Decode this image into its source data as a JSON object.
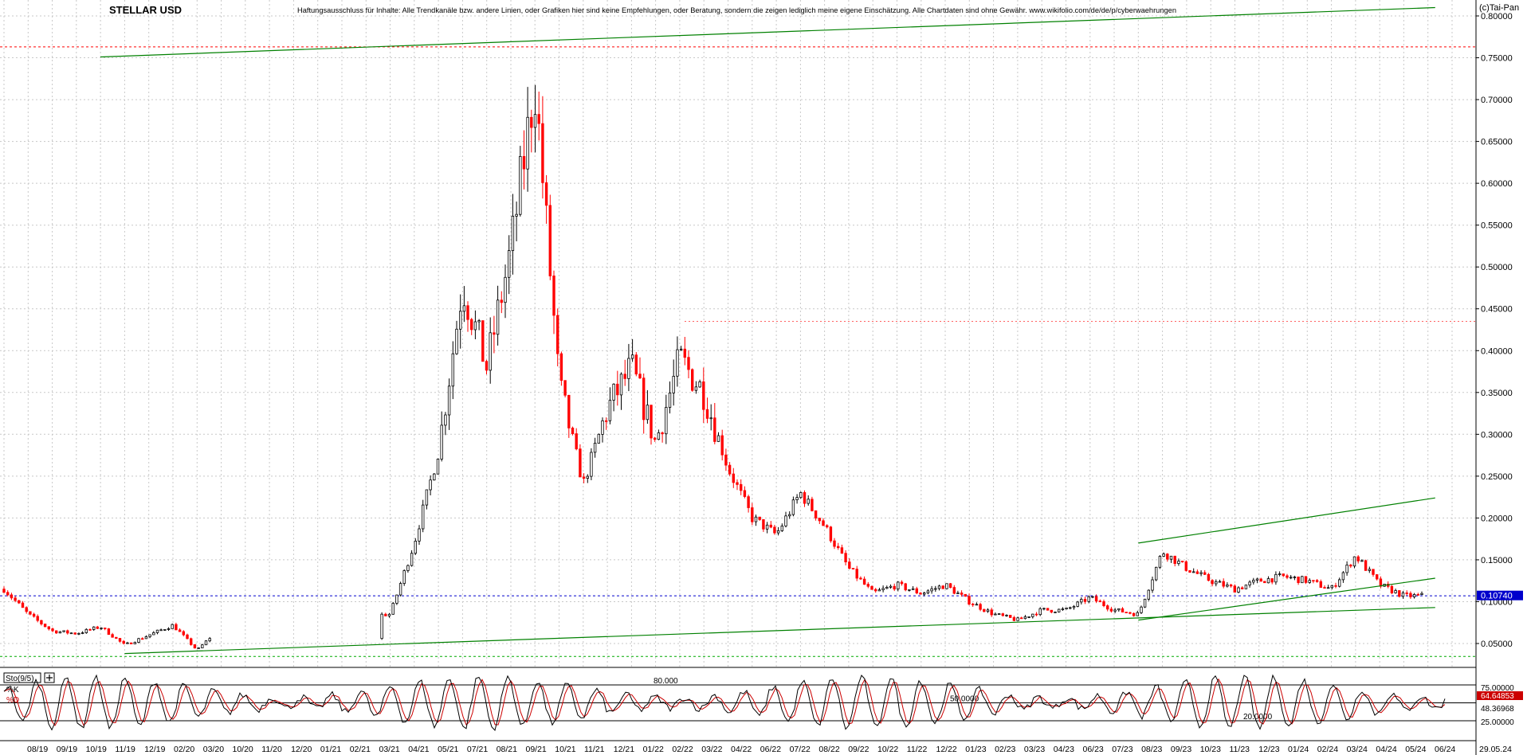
{
  "header": {
    "symbol": "STELLAR USD",
    "disclaimer": "Haftungsausschluss für Inhalte: Alle Trendkanäle bzw. andere Linien, oder Grafiken hier sind keine Empfehlungen, oder Beratung, sondern die zeigen lediglich meine eigene Einschätzung. Alle Chartdaten sind ohne Gewähr.  www.wikifolio.com/de/de/p/cyberwaehrungen",
    "copyright": "(c)Tai-Pan"
  },
  "colors": {
    "up_candle": "#000000",
    "down_candle": "#ff0000",
    "trendline": "#008000",
    "grid": "#c8c8c8",
    "last_price_bg": "#0000cc",
    "k_label_bg": "#cc0000",
    "d_label_bg": "#cc0000"
  },
  "chart_data": [
    {
      "type": "candlestick",
      "title": "STELLAR USD",
      "y_axis_side": "right",
      "ylim": [
        0.03,
        0.81
      ],
      "y_ticks": [
        0.05,
        0.1,
        0.15,
        0.2,
        0.25,
        0.3,
        0.35,
        0.4,
        0.45,
        0.5,
        0.55,
        0.6,
        0.65,
        0.7,
        0.75,
        0.8
      ],
      "y_tick_labels": [
        "0.05000",
        "0.10000",
        "0.15000",
        "0.20000",
        "0.25000",
        "0.30000",
        "0.35000",
        "0.40000",
        "0.45000",
        "0.50000",
        "0.55000",
        "0.60000",
        "0.65000",
        "0.70000",
        "0.75000",
        "0.80000"
      ],
      "x_labels": [
        "08/19",
        "09/19",
        "10/19",
        "11/19",
        "12/19",
        "02/20",
        "03/20",
        "10/20",
        "11/20",
        "12/20",
        "01/21",
        "02/21",
        "03/21",
        "04/21",
        "05/21",
        "07/21",
        "08/21",
        "09/21",
        "10/21",
        "11/21",
        "12/21",
        "01/22",
        "02/22",
        "03/22",
        "04/22",
        "06/22",
        "07/22",
        "08/22",
        "09/22",
        "10/22",
        "11/22",
        "12/22",
        "01/23",
        "02/23",
        "03/23",
        "04/23",
        "06/23",
        "07/23",
        "08/23",
        "09/23",
        "10/23",
        "11/23",
        "12/23",
        "01/24",
        "02/24",
        "03/24",
        "04/24",
        "05/24",
        "06/24",
        "29.05.24"
      ],
      "last_price": "0.10740",
      "close_anchors": [
        {
          "date": "2019-07",
          "close": 0.115
        },
        {
          "date": "2019-08",
          "close": 0.085
        },
        {
          "date": "2019-09",
          "close": 0.065
        },
        {
          "date": "2019-10",
          "close": 0.062
        },
        {
          "date": "2019-11",
          "close": 0.07
        },
        {
          "date": "2019-12",
          "close": 0.048
        },
        {
          "date": "2020-02",
          "close": 0.072
        },
        {
          "date": "2020-03",
          "close": 0.042
        },
        {
          "date": "2020-04",
          "close": 0.07
        },
        {
          "date": "2020-11",
          "close": 0.085
        },
        {
          "date": "2020-12",
          "close": 0.17
        },
        {
          "date": "2021-01",
          "close": 0.28
        },
        {
          "date": "2021-02",
          "close": 0.48
        },
        {
          "date": "2021-03",
          "close": 0.38
        },
        {
          "date": "2021-04",
          "close": 0.52
        },
        {
          "date": "2021-05",
          "close": 0.72
        },
        {
          "date": "2021-06",
          "close": 0.36
        },
        {
          "date": "2021-07",
          "close": 0.24
        },
        {
          "date": "2021-08",
          "close": 0.33
        },
        {
          "date": "2021-09",
          "close": 0.38
        },
        {
          "date": "2021-10",
          "close": 0.29
        },
        {
          "date": "2021-11",
          "close": 0.39
        },
        {
          "date": "2021-12",
          "close": 0.35
        },
        {
          "date": "2022-01",
          "close": 0.26
        },
        {
          "date": "2022-02",
          "close": 0.2
        },
        {
          "date": "2022-03",
          "close": 0.18
        },
        {
          "date": "2022-04",
          "close": 0.23
        },
        {
          "date": "2022-05",
          "close": 0.19
        },
        {
          "date": "2022-06",
          "close": 0.14
        },
        {
          "date": "2022-07",
          "close": 0.11
        },
        {
          "date": "2022-08",
          "close": 0.12
        },
        {
          "date": "2022-09",
          "close": 0.11
        },
        {
          "date": "2022-10",
          "close": 0.12
        },
        {
          "date": "2022-11",
          "close": 0.1
        },
        {
          "date": "2022-12",
          "close": 0.085
        },
        {
          "date": "2023-01",
          "close": 0.078
        },
        {
          "date": "2023-02",
          "close": 0.09
        },
        {
          "date": "2023-03",
          "close": 0.09
        },
        {
          "date": "2023-04",
          "close": 0.105
        },
        {
          "date": "2023-05",
          "close": 0.09
        },
        {
          "date": "2023-06",
          "close": 0.085
        },
        {
          "date": "2023-07",
          "close": 0.16
        },
        {
          "date": "2023-08",
          "close": 0.14
        },
        {
          "date": "2023-09",
          "close": 0.125
        },
        {
          "date": "2023-10",
          "close": 0.115
        },
        {
          "date": "2023-11",
          "close": 0.125
        },
        {
          "date": "2023-12",
          "close": 0.13
        },
        {
          "date": "2024-01",
          "close": 0.125
        },
        {
          "date": "2024-02",
          "close": 0.115
        },
        {
          "date": "2024-03",
          "close": 0.155
        },
        {
          "date": "2024-04",
          "close": 0.12
        },
        {
          "date": "2024-05",
          "close": 0.107
        }
      ],
      "resistance_levels": [
        0.763,
        0.435
      ],
      "support_level": 0.107,
      "lower_dashed_level": 0.0345,
      "trendlines": [
        {
          "from": {
            "date": "2019-11",
            "value": 0.751
          },
          "to": {
            "date": "2024-06",
            "value": 0.81
          }
        },
        {
          "from": {
            "date": "2019-12",
            "value": 0.038
          },
          "to": {
            "date": "2024-06",
            "value": 0.093
          }
        },
        {
          "from": {
            "date": "2023-06",
            "value": 0.17
          },
          "to": {
            "date": "2024-06",
            "value": 0.224
          }
        },
        {
          "from": {
            "date": "2023-06",
            "value": 0.078
          },
          "to": {
            "date": "2024-06",
            "value": 0.128
          }
        }
      ]
    },
    {
      "type": "line",
      "title": "Sto(9/5)",
      "ylim": [
        0,
        100
      ],
      "levels": [
        {
          "value": 80,
          "label": "80.000"
        },
        {
          "value": 50,
          "label": "50.0000"
        },
        {
          "value": 20,
          "label": "20.0000"
        }
      ],
      "y_tick_labels": [
        "75.00000",
        "25.00000"
      ],
      "series": [
        {
          "name": "%K",
          "last": "64.64853",
          "color": "#000000"
        },
        {
          "name": "%D",
          "last": "48.36968",
          "color": "#cc0000"
        }
      ]
    }
  ]
}
